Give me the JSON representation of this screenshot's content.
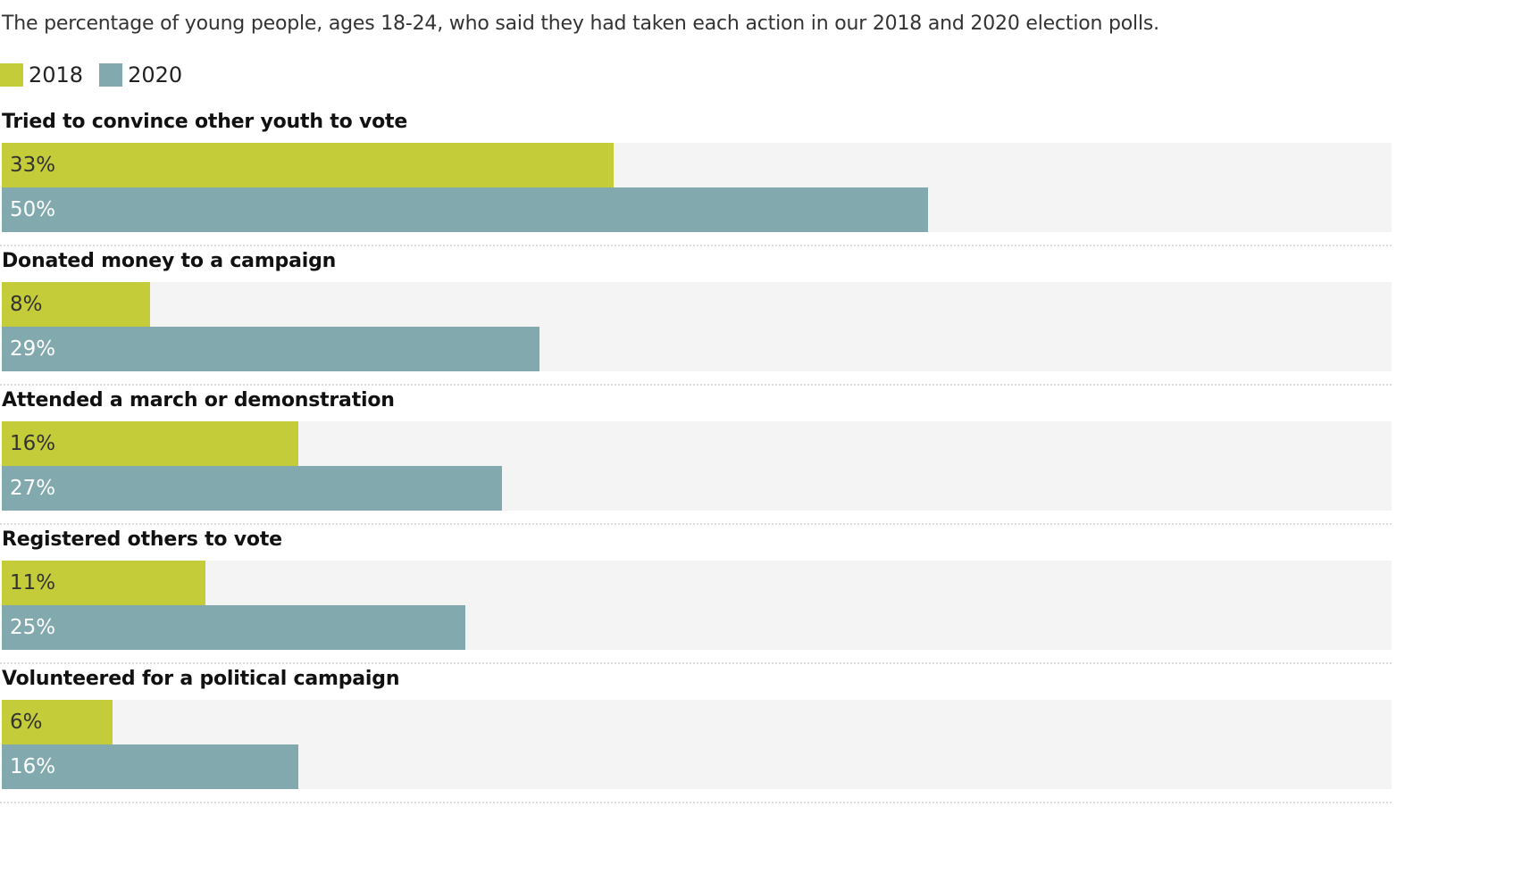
{
  "subtitle": "The percentage of young people, ages 18-24, who said they had taken each action in our 2018 and 2020 election polls.",
  "legend": [
    {
      "label": "2018",
      "color": "#c4cc3a"
    },
    {
      "label": "2020",
      "color": "#82a9ad"
    }
  ],
  "colors": {
    "track": "#f4f4f4",
    "series_2018": "#c4cc3a",
    "series_2020": "#82a9ad"
  },
  "chart_data": {
    "type": "bar",
    "orientation": "horizontal",
    "xlim": [
      0,
      75
    ],
    "categories": [
      "Tried to convince other youth to vote",
      "Donated money to a campaign",
      "Attended a march or demonstration",
      "Registered others to vote",
      "Volunteered for a political campaign"
    ],
    "series": [
      {
        "name": "2018",
        "values": [
          33,
          8,
          16,
          11,
          6
        ],
        "labels": [
          "33%",
          "8%",
          "16%",
          "11%",
          "6%"
        ]
      },
      {
        "name": "2020",
        "values": [
          50,
          29,
          27,
          25,
          16
        ],
        "labels": [
          "50%",
          "29%",
          "27%",
          "25%",
          "16%"
        ]
      }
    ],
    "legend_position": "top-left",
    "grid": false
  }
}
